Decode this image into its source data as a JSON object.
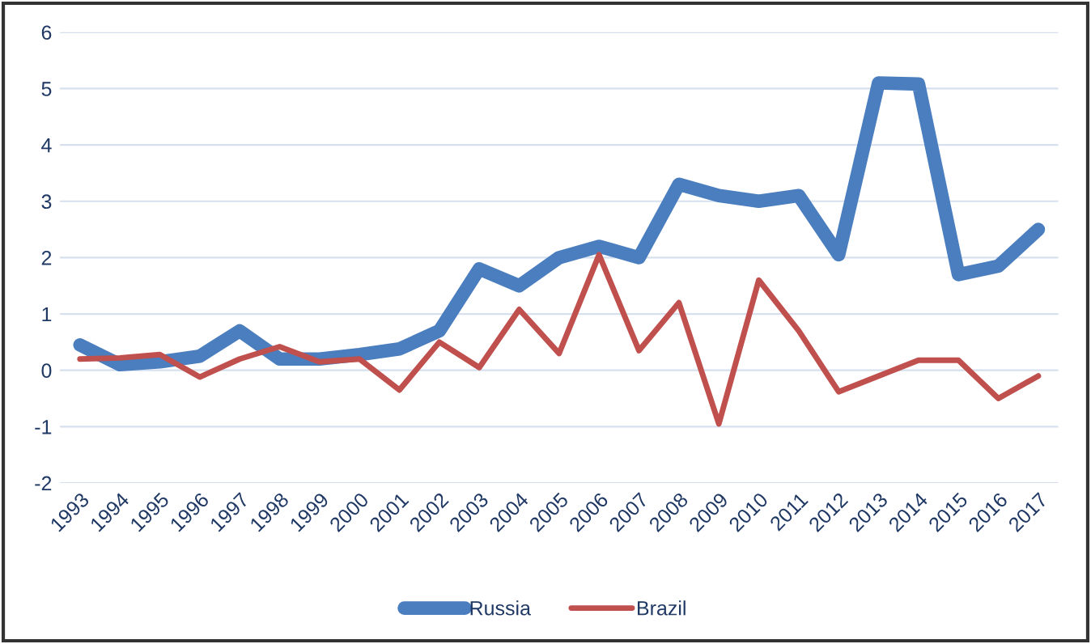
{
  "chart_data": {
    "type": "line",
    "categories": [
      "1993",
      "1994",
      "1995",
      "1996",
      "1997",
      "1998",
      "1999",
      "2000",
      "2001",
      "2002",
      "2003",
      "2004",
      "2005",
      "2006",
      "2007",
      "2008",
      "2009",
      "2010",
      "2011",
      "2012",
      "2013",
      "2014",
      "2015",
      "2016",
      "2017"
    ],
    "series": [
      {
        "name": "Russia",
        "color": "#4a7ebf",
        "values": [
          0.45,
          0.1,
          0.15,
          0.25,
          0.7,
          0.2,
          0.2,
          0.28,
          0.38,
          0.7,
          1.8,
          1.5,
          2.0,
          2.2,
          2.0,
          3.3,
          3.1,
          3.0,
          3.1,
          2.05,
          5.1,
          5.08,
          1.7,
          1.85,
          2.5
        ]
      },
      {
        "name": "Brazil",
        "color": "#c0504d",
        "values": [
          0.2,
          0.22,
          0.28,
          -0.12,
          0.2,
          0.42,
          0.15,
          0.2,
          -0.35,
          0.5,
          0.05,
          1.08,
          0.3,
          2.05,
          0.35,
          1.2,
          -0.95,
          1.6,
          0.7,
          -0.38,
          -0.1,
          0.18,
          0.18,
          -0.5,
          -0.1
        ]
      }
    ],
    "ylim": [
      -2,
      6
    ],
    "yticks": [
      -2,
      -1,
      0,
      1,
      2,
      3,
      4,
      5,
      6
    ],
    "grid": "y",
    "legend": "bottom"
  }
}
